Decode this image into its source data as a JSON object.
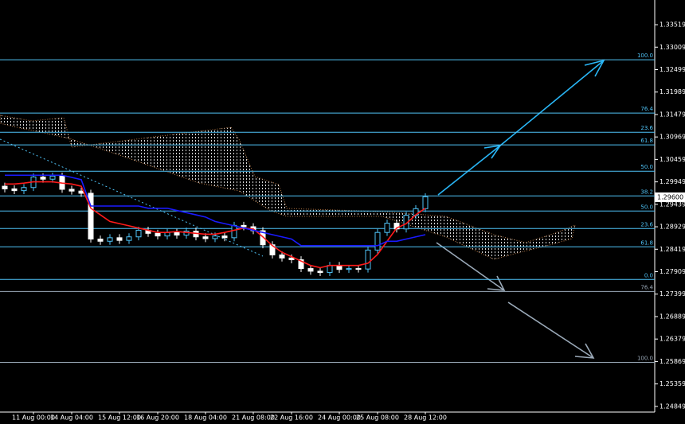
{
  "chart_data": {
    "type": "candlestick",
    "categories": [
      null,
      null,
      null,
      "11 Aug 00:00",
      null,
      null,
      null,
      "14 Aug 04:00",
      null,
      null,
      null,
      null,
      "15 Aug 12:00",
      null,
      null,
      null,
      "16 Aug 20:00",
      null,
      null,
      null,
      null,
      "18 Aug 04:00",
      null,
      null,
      null,
      null,
      "21 Aug 08:00",
      null,
      null,
      null,
      "22 Aug 16:00",
      null,
      null,
      null,
      null,
      "24 Aug 00:00",
      null,
      null,
      null,
      "25 Aug 08:00",
      null,
      null,
      null,
      null,
      "28 Aug 12:00"
    ],
    "open": [
      1.2985,
      1.2979,
      1.2975,
      1.2982,
      1.3006,
      1.3001,
      1.3008,
      1.2978,
      1.2974,
      1.2969,
      1.2865,
      1.286,
      1.2868,
      1.2862,
      1.287,
      1.2885,
      1.2878,
      1.2872,
      1.288,
      1.2874,
      1.2883,
      1.287,
      1.2866,
      1.2872,
      1.2868,
      1.2896,
      1.2893,
      1.2884,
      1.2852,
      1.2829,
      1.2822,
      1.2818,
      1.2798,
      1.2792,
      1.2789,
      1.2805,
      1.2796,
      1.2798,
      1.2797,
      1.284,
      1.288,
      1.2901,
      1.2888,
      1.2919,
      1.2934
    ],
    "high": [
      1.2993,
      1.2987,
      1.299,
      1.3014,
      1.3014,
      1.3016,
      1.3016,
      1.2986,
      1.2982,
      1.2977,
      1.2873,
      1.2876,
      1.2876,
      1.2878,
      1.2893,
      1.2893,
      1.2886,
      1.2888,
      1.2888,
      1.2891,
      1.2891,
      1.2878,
      1.288,
      1.288,
      1.2904,
      1.2904,
      1.2901,
      1.2892,
      1.286,
      1.2837,
      1.283,
      1.2826,
      1.2806,
      1.28,
      1.2813,
      1.2813,
      1.2806,
      1.2806,
      1.2848,
      1.2888,
      1.2909,
      1.2909,
      1.2927,
      1.2942,
      1.2969
    ],
    "low": [
      1.2971,
      1.2967,
      1.2967,
      1.2974,
      1.2993,
      1.2993,
      1.297,
      1.2966,
      1.2961,
      1.2857,
      1.2852,
      1.2852,
      1.2854,
      1.2854,
      1.2862,
      1.287,
      1.2864,
      1.2864,
      1.2866,
      1.2866,
      1.2862,
      1.2858,
      1.2858,
      1.286,
      1.286,
      1.2885,
      1.2876,
      1.2844,
      1.2821,
      1.2814,
      1.281,
      1.279,
      1.2784,
      1.2781,
      1.2781,
      1.2788,
      1.2788,
      1.2789,
      1.2789,
      1.2832,
      1.2872,
      1.288,
      1.288,
      1.2911,
      1.2926
    ],
    "close": [
      1.2979,
      1.2975,
      1.2982,
      1.3006,
      1.3001,
      1.3008,
      1.2978,
      1.2974,
      1.2969,
      1.2865,
      1.286,
      1.2868,
      1.2862,
      1.287,
      1.2885,
      1.2878,
      1.2872,
      1.288,
      1.2874,
      1.2883,
      1.287,
      1.2866,
      1.2872,
      1.2868,
      1.2896,
      1.2893,
      1.2884,
      1.2852,
      1.2829,
      1.2822,
      1.2818,
      1.2798,
      1.2792,
      1.2789,
      1.2805,
      1.2796,
      1.2798,
      1.2797,
      1.284,
      1.288,
      1.2901,
      1.2888,
      1.2919,
      1.2934,
      1.2961
    ],
    "up_color": "#4fc3f7",
    "down_color": "#ffffff",
    "lines": [
      {
        "color": "#ff1a1a",
        "values": [
          1.299,
          1.299,
          1.2992,
          1.2995,
          1.2995,
          1.2995,
          1.2992,
          1.299,
          1.2985,
          1.2935,
          1.292,
          1.2905,
          1.29,
          1.2895,
          1.289,
          1.2885,
          1.288,
          1.288,
          1.2882,
          1.288,
          1.2878,
          1.2876,
          1.2876,
          1.288,
          1.2885,
          1.289,
          1.2888,
          1.287,
          1.285,
          1.2835,
          1.2825,
          1.2815,
          1.2805,
          1.28,
          1.2805,
          1.2805,
          1.2805,
          1.2805,
          1.281,
          1.283,
          1.286,
          1.289,
          1.29,
          1.292,
          1.2935
        ]
      },
      {
        "color": "#1a1aff",
        "values": [
          1.301,
          1.301,
          1.301,
          1.301,
          1.301,
          1.301,
          1.301,
          1.3005,
          1.3,
          1.294,
          1.294,
          1.294,
          1.294,
          1.294,
          1.294,
          1.2935,
          1.2935,
          1.2935,
          1.293,
          1.2925,
          1.292,
          1.2915,
          1.2905,
          1.29,
          1.2895,
          1.289,
          1.2885,
          1.288,
          1.2875,
          1.287,
          1.2865,
          1.285,
          1.285,
          1.285,
          1.285,
          1.285,
          1.285,
          1.285,
          1.285,
          1.285,
          1.286,
          1.286,
          1.2865,
          1.287,
          1.2875
        ]
      }
    ],
    "fib_levels": [
      {
        "value": 1.32723,
        "label": "100.0",
        "color": "#4fc3f7"
      },
      {
        "value": 1.31511,
        "label": "76.4",
        "color": "#4fc3f7"
      },
      {
        "value": 1.31077,
        "label": "23.6",
        "color": "#4fc3f7"
      },
      {
        "value": 1.30788,
        "label": "61.8",
        "color": "#4fc3f7"
      },
      {
        "value": 1.30191,
        "label": "50.0",
        "color": "#4fc3f7"
      },
      {
        "value": 1.2963,
        "label": "38.2",
        "color": "#4fc3f7"
      },
      {
        "value": 1.29287,
        "label": "50.0",
        "color": "#4fc3f7"
      },
      {
        "value": 1.28889,
        "label": "23.6",
        "color": "#4fc3f7"
      },
      {
        "value": 1.28473,
        "label": "61.8",
        "color": "#4fc3f7"
      },
      {
        "value": 1.27732,
        "label": "0.0",
        "color": "#4fc3f7"
      },
      {
        "value": 1.2746,
        "label": "76.4",
        "color": "#9aa9b8"
      },
      {
        "value": 1.2585,
        "label": "100.0",
        "color": "#9aa9b8"
      }
    ],
    "current_price": {
      "value": 1.296,
      "label": "1.29600"
    },
    "ylim": [
      1.2472,
      1.3408
    ],
    "yticks": [
      1.33519,
      1.33009,
      1.32499,
      1.31989,
      1.31479,
      1.30969,
      1.30459,
      1.29949,
      1.29439,
      1.28929,
      1.28419,
      1.27909,
      1.27399,
      1.26889,
      1.26379,
      1.25869,
      1.25359,
      1.24849
    ]
  }
}
